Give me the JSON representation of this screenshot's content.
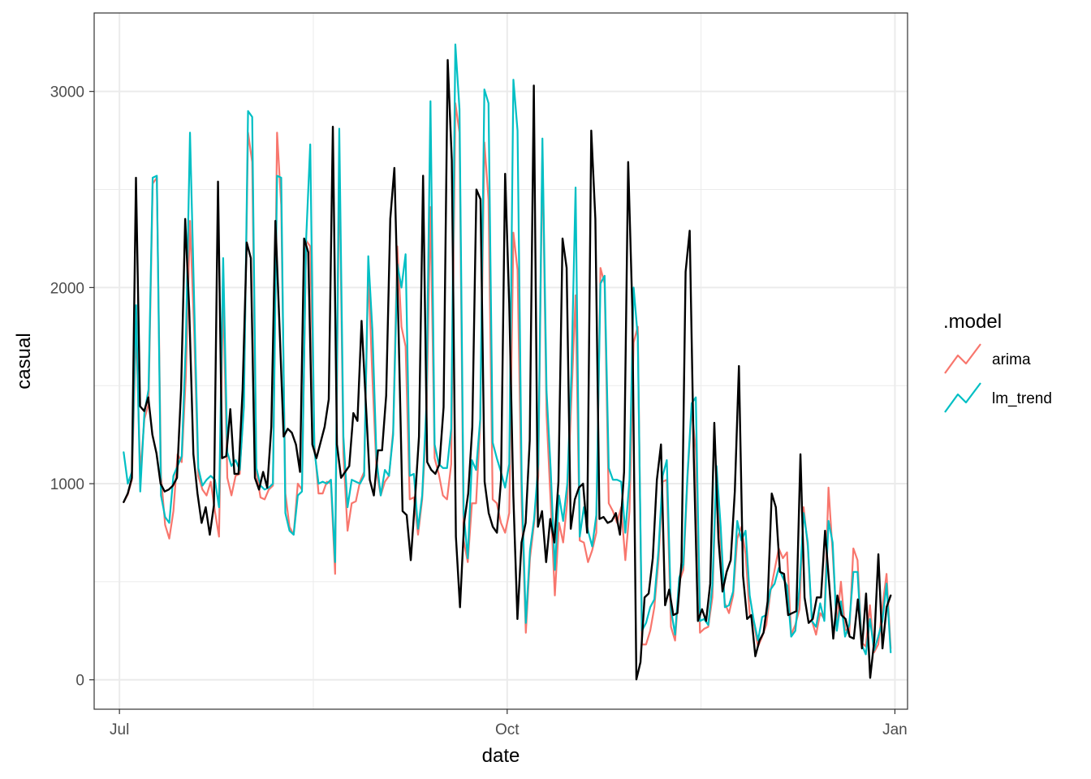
{
  "chart_data": {
    "type": "line",
    "xlabel": "date",
    "ylabel": "casual",
    "x_axis_type": "date",
    "x_range": [
      "2012-06-25",
      "2013-01-04"
    ],
    "x_ticks": [
      {
        "date": "2012-07-01",
        "label": "Jul"
      },
      {
        "date": "2012-10-01",
        "label": "Oct"
      },
      {
        "date": "2013-01-01",
        "label": "Jan"
      }
    ],
    "x_minor_gridlines": [
      "2012-08-16",
      "2012-11-16"
    ],
    "ylim": [
      -150,
      3400
    ],
    "y_ticks": [
      0,
      1000,
      2000,
      3000
    ],
    "y_minor_gridlines": [
      500,
      1500,
      2500
    ],
    "grid": true,
    "legend": {
      "title": ".model",
      "position": "right",
      "entries": [
        "arima",
        "lm_trend"
      ]
    },
    "colors": {
      "arima": "#F8766D",
      "lm_trend": "#00BFC4",
      "actual": "#000000",
      "grid": "#ebebeb",
      "panel_border": "#333333"
    },
    "x_start": "2012-07-02",
    "x_end": "2012-12-31",
    "series": [
      {
        "key": "actual",
        "values": [
          906,
          950,
          1030,
          2560,
          1395,
          1370,
          1440,
          1250,
          1155,
          1000,
          960,
          970,
          990,
          1030,
          1480,
          2350,
          1880,
          1150,
          950,
          800,
          880,
          740,
          890,
          2540,
          1130,
          1140,
          1380,
          1050,
          1050,
          1480,
          2230,
          2150,
          1030,
          970,
          1060,
          980,
          1290,
          2340,
          1800,
          1240,
          1280,
          1260,
          1200,
          1060,
          2250,
          2180,
          1200,
          1130,
          1210,
          1290,
          1430,
          2820,
          1200,
          1030,
          1060,
          1090,
          1360,
          1320,
          1830,
          1430,
          1020,
          940,
          1170,
          1170,
          1450,
          2350,
          2610,
          1800,
          860,
          840,
          610,
          910,
          1240,
          2570,
          1110,
          1070,
          1050,
          1100,
          1390,
          3160,
          2650,
          730,
          370,
          800,
          950,
          1290,
          2500,
          2450,
          1010,
          850,
          780,
          750,
          1020,
          2580,
          1920,
          940,
          310,
          700,
          800,
          1220,
          3030,
          780,
          860,
          600,
          820,
          700,
          1010,
          2250,
          2100,
          770,
          920,
          980,
          1000,
          750,
          2800,
          2350,
          820,
          830,
          800,
          810,
          850,
          740,
          1060,
          2640,
          1900,
          2,
          90,
          420,
          440,
          620,
          1020,
          1200,
          380,
          460,
          330,
          340,
          600,
          2080,
          2290,
          1130,
          300,
          360,
          300,
          490,
          1310,
          720,
          450,
          550,
          610,
          960,
          1600,
          530,
          310,
          330,
          120,
          200,
          240,
          400,
          950,
          880,
          550,
          540,
          330,
          340,
          350,
          1150,
          420,
          290,
          310,
          420,
          420,
          760,
          490,
          210,
          430,
          330,
          310,
          220,
          210,
          410,
          160,
          440,
          10,
          200,
          640,
          160,
          370,
          430
        ]
      },
      {
        "key": "arima",
        "values": [
          906,
          945,
          1020,
          1810,
          1050,
          1330,
          1405,
          2530,
          2560,
          1040,
          790,
          720,
          860,
          1150,
          1110,
          1550,
          2340,
          1780,
          1040,
          970,
          940,
          1010,
          860,
          730,
          1980,
          1030,
          940,
          1040,
          1050,
          1430,
          2790,
          2640,
          1060,
          930,
          920,
          970,
          990,
          2790,
          2420,
          950,
          780,
          740,
          1000,
          970,
          2240,
          2210,
          1200,
          950,
          950,
          1010,
          1000,
          540,
          2660,
          1150,
          760,
          900,
          910,
          1010,
          1060,
          2080,
          1540,
          1060,
          940,
          1010,
          1040,
          1270,
          2210,
          1800,
          1700,
          920,
          930,
          740,
          920,
          1300,
          2410,
          1130,
          1050,
          940,
          920,
          1100,
          2940,
          2790,
          710,
          600,
          900,
          900,
          1310,
          2740,
          2450,
          920,
          900,
          800,
          750,
          850,
          2280,
          2090,
          900,
          240,
          620,
          800,
          1040,
          2700,
          1350,
          900,
          430,
          800,
          700,
          910,
          1440,
          1960,
          710,
          700,
          600,
          660,
          750,
          2100,
          2020,
          900,
          860,
          800,
          880,
          610,
          860,
          1720,
          1800,
          180,
          180,
          250,
          370,
          610,
          1010,
          1020,
          270,
          200,
          500,
          560,
          1030,
          1380,
          1170,
          240,
          260,
          270,
          420,
          1070,
          700,
          390,
          340,
          430,
          720,
          780,
          640,
          330,
          290,
          170,
          220,
          280,
          450,
          560,
          670,
          620,
          650,
          230,
          280,
          360,
          880,
          680,
          300,
          230,
          340,
          310,
          980,
          650,
          280,
          500,
          260,
          230,
          670,
          610,
          190,
          170,
          380,
          140,
          180,
          370,
          540,
          160
        ]
      },
      {
        "key": "lm_trend",
        "values": [
          1160,
          1000,
          1060,
          1910,
          960,
          1360,
          1480,
          2560,
          2570,
          940,
          830,
          800,
          1040,
          1090,
          1140,
          1720,
          2790,
          1930,
          1080,
          990,
          1020,
          1040,
          1020,
          880,
          2150,
          1160,
          1090,
          1120,
          1070,
          1390,
          2900,
          2870,
          1080,
          990,
          970,
          980,
          1000,
          2570,
          2560,
          850,
          760,
          740,
          940,
          960,
          2240,
          2730,
          1170,
          1000,
          1010,
          1000,
          1020,
          600,
          2810,
          1240,
          880,
          1020,
          1010,
          1000,
          1040,
          2160,
          1780,
          1120,
          940,
          1070,
          1040,
          1250,
          2120,
          2000,
          2170,
          1040,
          1050,
          770,
          940,
          1390,
          2950,
          1200,
          1100,
          1080,
          1080,
          1280,
          3240,
          2910,
          850,
          620,
          1120,
          1070,
          1330,
          3010,
          2940,
          1210,
          1130,
          1060,
          980,
          1100,
          3060,
          2800,
          1010,
          290,
          660,
          820,
          1100,
          2760,
          1470,
          1070,
          560,
          940,
          810,
          1000,
          1560,
          2510,
          730,
          880,
          760,
          680,
          840,
          2020,
          2060,
          1080,
          1020,
          1020,
          1010,
          750,
          1020,
          2000,
          1750,
          250,
          290,
          370,
          410,
          660,
          1040,
          1120,
          360,
          230,
          520,
          590,
          1050,
          1410,
          1440,
          300,
          310,
          280,
          480,
          1090,
          780,
          370,
          380,
          450,
          810,
          710,
          760,
          430,
          300,
          200,
          320,
          330,
          460,
          490,
          570,
          520,
          480,
          220,
          250,
          470,
          850,
          700,
          300,
          270,
          390,
          300,
          810,
          700,
          250,
          400,
          220,
          280,
          550,
          550,
          180,
          130,
          310,
          150,
          220,
          300,
          490,
          140
        ]
      }
    ]
  }
}
